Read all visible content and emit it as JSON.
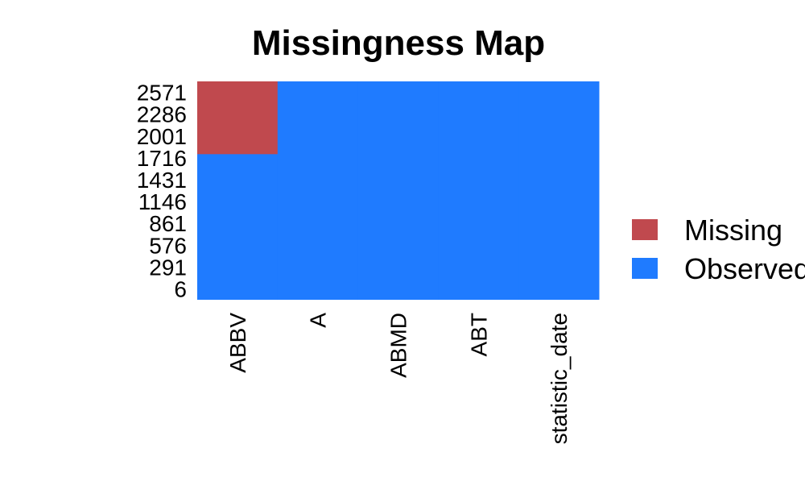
{
  "chart_data": {
    "type": "heatmap",
    "title": "Missingness Map",
    "xlabel": "",
    "ylabel": "",
    "variables": [
      "ABBV",
      "A",
      "ABMD",
      "ABT",
      "statistic_date"
    ],
    "y_ticks": [
      "2571",
      "2286",
      "2001",
      "1716",
      "1431",
      "1146",
      "861",
      "576",
      "291",
      "6"
    ],
    "row_range": [
      6,
      2571
    ],
    "missing_blocks": [
      {
        "variable": "ABBV",
        "rows_from": 1716,
        "rows_to": 2571
      }
    ],
    "legend": [
      {
        "label": "Missing",
        "color": "#c0494e"
      },
      {
        "label": "Observed",
        "color": "#1f7bff"
      }
    ],
    "legend_position": "right"
  }
}
